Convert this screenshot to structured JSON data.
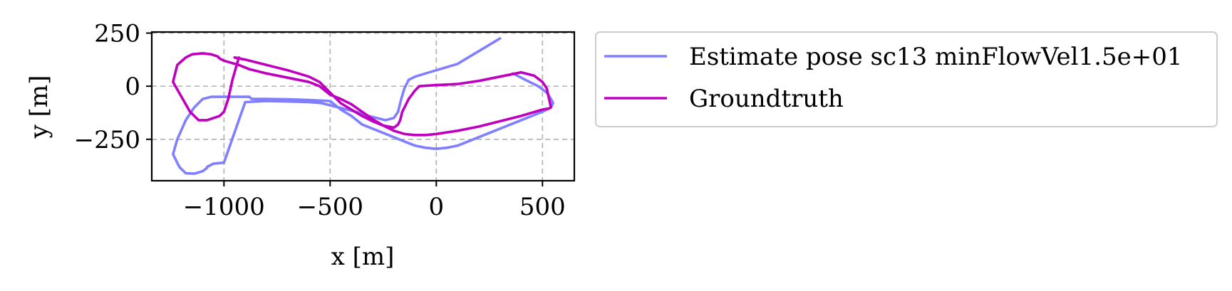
{
  "chart_data": {
    "type": "line",
    "xlabel": "x [m]",
    "ylabel": "y [m]",
    "xlim": [
      -1340,
      650
    ],
    "ylim": [
      -445,
      255
    ],
    "xticks": [
      -1000,
      -500,
      0,
      500
    ],
    "xtick_labels": [
      "−1000",
      "−500",
      "0",
      "500"
    ],
    "yticks": [
      250,
      0,
      -250
    ],
    "ytick_labels": [
      "250",
      "0",
      "−250"
    ],
    "grid": true,
    "legend_position": "outside-right",
    "series": [
      {
        "name": "Estimate pose sc13 minFlowVel1.5e+01",
        "color": "#7f7fff",
        "x": [
          300,
          250,
          200,
          150,
          100,
          50,
          0,
          -50,
          -100,
          -130,
          -150,
          -165,
          -180,
          -200,
          -240,
          -280,
          -320,
          -350,
          -380,
          -420,
          -460,
          -500,
          -540,
          -600,
          -700,
          -800,
          -900,
          -1000,
          -1050,
          -1070,
          -1080,
          -1080,
          -1100,
          -1140,
          -1180,
          -1210,
          -1240,
          -1220,
          -1180,
          -1140,
          -1100,
          -1060,
          -1000,
          -940,
          -900,
          -880,
          -870,
          -800,
          -700,
          -600,
          -500,
          -450,
          -400,
          -350,
          -300,
          -250,
          -200,
          -150,
          -100,
          -50,
          0,
          50,
          100,
          150,
          200,
          300,
          400,
          500,
          540,
          550,
          540,
          520,
          480,
          440,
          400,
          360
        ],
        "y": [
          225,
          195,
          165,
          135,
          105,
          90,
          75,
          60,
          45,
          30,
          -10,
          -60,
          -120,
          -150,
          -160,
          -150,
          -140,
          -130,
          -120,
          -110,
          -100,
          -90,
          -80,
          -75,
          -72,
          -70,
          -75,
          -360,
          -365,
          -375,
          -380,
          -385,
          -400,
          -412,
          -410,
          -380,
          -320,
          -250,
          -160,
          -100,
          -60,
          -50,
          -50,
          -50,
          -50,
          -50,
          -60,
          -60,
          -62,
          -65,
          -70,
          -110,
          -140,
          -180,
          -200,
          -220,
          -240,
          -260,
          -280,
          -290,
          -295,
          -290,
          -280,
          -260,
          -240,
          -200,
          -160,
          -120,
          -100,
          -80,
          -60,
          -30,
          0,
          20,
          40,
          60
        ]
      },
      {
        "name": "Groundtruth",
        "color": "#bf00bf",
        "x": [
          -950,
          -900,
          -800,
          -700,
          -600,
          -550,
          -500,
          -450,
          -400,
          -350,
          -300,
          -250,
          -200,
          -180,
          -170,
          -160,
          -150,
          -130,
          -100,
          -80,
          0,
          100,
          200,
          300,
          400,
          460,
          500,
          520,
          540,
          530,
          500,
          400,
          300,
          200,
          100,
          0,
          -50,
          -100,
          -150,
          -200,
          -250,
          -300,
          -350,
          -400,
          -450,
          -500,
          -550,
          -600,
          -700,
          -800,
          -880,
          -930,
          -1000,
          -1020,
          -1030,
          -1060,
          -1100,
          -1150,
          -1180,
          -1220,
          -1230,
          -1240,
          -1200,
          -1160,
          -1120,
          -1080,
          -1050,
          -1020,
          -1000,
          -980,
          -960,
          -930
        ],
        "y": [
          135,
          125,
          100,
          75,
          45,
          20,
          -30,
          -80,
          -110,
          -140,
          -165,
          -185,
          -195,
          -180,
          -160,
          -120,
          -100,
          -60,
          -20,
          0,
          5,
          10,
          25,
          45,
          65,
          50,
          20,
          -10,
          -100,
          -105,
          -110,
          -140,
          -165,
          -190,
          -210,
          -225,
          -230,
          -230,
          -225,
          -210,
          -185,
          -155,
          -120,
          -85,
          -60,
          -40,
          0,
          20,
          40,
          60,
          80,
          100,
          120,
          130,
          140,
          150,
          155,
          150,
          135,
          100,
          60,
          20,
          -50,
          -120,
          -160,
          -160,
          -150,
          -140,
          -120,
          -60,
          30,
          135
        ]
      }
    ]
  }
}
